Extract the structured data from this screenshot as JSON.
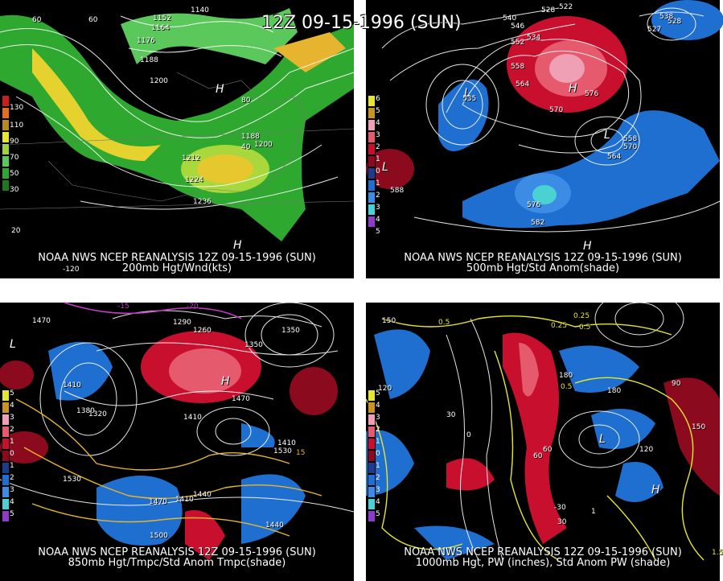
{
  "title": "12Z 09-15-1996 (SUN)",
  "panels": [
    {
      "caption1": "NOAA NWS NCEP REANALYSIS 12Z 09-15-1996 (SUN)",
      "caption2": "200mb Hgt/Wnd(kts)",
      "legend": [
        "130",
        "110",
        "90",
        "70",
        "50",
        "30"
      ],
      "labels": [
        "1140",
        "1152",
        "1164",
        "1176",
        "1188",
        "1200",
        "1188",
        "1200",
        "1212",
        "1224",
        "1236",
        "H",
        "H",
        "40",
        "20",
        "-120",
        "80",
        "60",
        "60"
      ]
    },
    {
      "caption1": "NOAA NWS NCEP REANALYSIS 12Z 09-15-1996 (SUN)",
      "caption2": "500mb Hgt/Std Anom(shade)",
      "legend": [
        "6",
        "5",
        "4",
        "3",
        "2",
        "1",
        "0",
        "1",
        "2",
        "3",
        "4",
        "5"
      ],
      "labels": [
        "540",
        "546",
        "528",
        "522",
        "534",
        "552",
        "558",
        "564",
        "570",
        "576",
        "570",
        "564",
        "558",
        "576",
        "582",
        "588",
        "535",
        "527",
        "528",
        "538",
        "H",
        "L",
        "L",
        "L",
        "H"
      ]
    },
    {
      "caption1": "NOAA NWS NCEP REANALYSIS 12Z 09-15-1996 (SUN)",
      "caption2": "850mb Hgt/Tmpc/Std Anom Tmpc(shade)",
      "legend": [
        "5",
        "4",
        "3",
        "2",
        "1",
        "0",
        "1",
        "2",
        "3",
        "4",
        "5"
      ],
      "labels": [
        "1470",
        "1410",
        "1350",
        "1380",
        "1320",
        "1290",
        "1260",
        "1350",
        "1410",
        "1440",
        "1470",
        "1500",
        "1530",
        "1470",
        "1410",
        "1440",
        "1410",
        "1530",
        "-15",
        "-20",
        "15",
        "H",
        "L"
      ]
    },
    {
      "caption1": "NOAA NWS NCEP REANALYSIS 12Z 09-15-1996 (SUN)",
      "caption2": "1000mb Hgt, PW (inches), Std Anom PW (shade)",
      "legend": [
        "5",
        "4",
        "3",
        "2",
        "1",
        "0",
        "1",
        "2",
        "3",
        "4",
        "5"
      ],
      "labels": [
        "0.5",
        "0.25",
        "0.5",
        "0.25",
        "0.5",
        "150",
        "120",
        "90",
        "60",
        "30",
        "0",
        "-30",
        "30",
        "60",
        "120",
        "150",
        "180",
        "180",
        "1",
        "1.5",
        "H",
        "L"
      ]
    }
  ],
  "colors": {
    "background": "#000000",
    "contour": "#ffffff",
    "green": "#2ea82e",
    "yellow": "#e6e62e",
    "red": "#c8102e",
    "blue": "#1e6fd0",
    "magenta": "#c83cc8"
  }
}
